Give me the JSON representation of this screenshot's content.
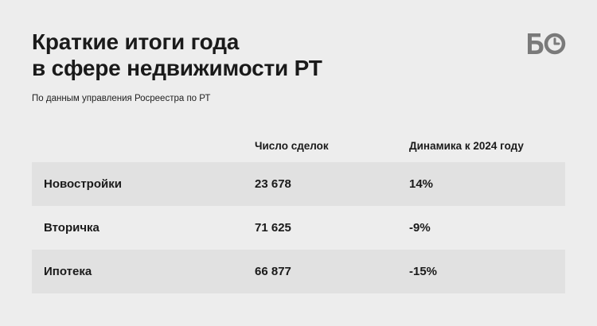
{
  "header": {
    "title_line1": "Краткие итоги года",
    "title_line2": "в сфере недвижимости РТ",
    "subtitle": "По данным управления Росреестра по РТ"
  },
  "logo": {
    "icon": "bo-logo-icon",
    "color": "#7a7a7a"
  },
  "chart_data": {
    "type": "table",
    "columns": [
      "",
      "Число сделок",
      "Динамика к 2024 году"
    ],
    "rows": [
      {
        "category": "Новостройки",
        "deals": "23 678",
        "change": "14%"
      },
      {
        "category": "Вторичка",
        "deals": "71 625",
        "change": "-9%"
      },
      {
        "category": "Ипотека",
        "deals": "66 877",
        "change": "-15%"
      }
    ]
  },
  "colors": {
    "background": "#ededed",
    "row_shade": "#e1e1e1",
    "text": "#1a1a1a"
  }
}
